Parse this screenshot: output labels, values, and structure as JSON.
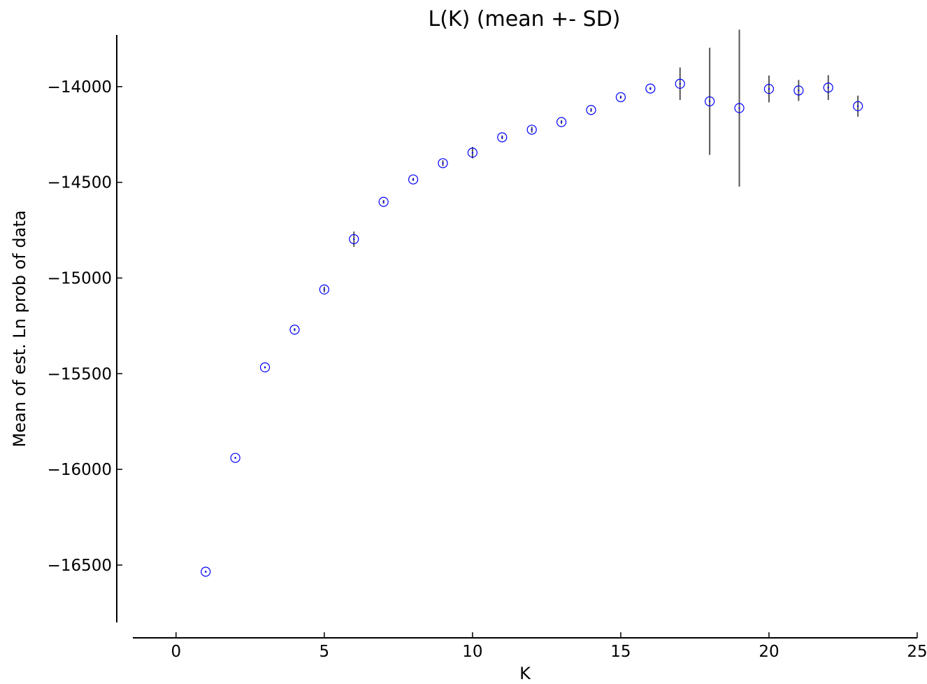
{
  "chart_data": {
    "type": "scatter",
    "title": "L(K) (mean +- SD)",
    "xlabel": "K",
    "ylabel": "Mean of est. Ln prob of data",
    "xlim": [
      -2,
      25
    ],
    "ylim": [
      -16800,
      -13730
    ],
    "xticks": [
      0,
      5,
      10,
      15,
      20,
      25
    ],
    "yticks": [
      -16500,
      -16000,
      -15500,
      -15000,
      -14500,
      -14000
    ],
    "ytick_labels": [
      "−16500",
      "−16000",
      "−15500",
      "−15000",
      "−14500",
      "−14000"
    ],
    "marker_color": "#0000ff",
    "errorbar_color": "#555555",
    "grid": false,
    "points": [
      {
        "x": 1,
        "y": -16535,
        "sd": 5
      },
      {
        "x": 2,
        "y": -15940,
        "sd": 5
      },
      {
        "x": 3,
        "y": -15467,
        "sd": 5
      },
      {
        "x": 4,
        "y": -15270,
        "sd": 8
      },
      {
        "x": 5,
        "y": -15060,
        "sd": 15
      },
      {
        "x": 6,
        "y": -14797,
        "sd": 40
      },
      {
        "x": 7,
        "y": -14602,
        "sd": 10
      },
      {
        "x": 8,
        "y": -14485,
        "sd": 8
      },
      {
        "x": 9,
        "y": -14400,
        "sd": 15
      },
      {
        "x": 10,
        "y": -14345,
        "sd": 30
      },
      {
        "x": 11,
        "y": -14265,
        "sd": 10
      },
      {
        "x": 12,
        "y": -14225,
        "sd": 15
      },
      {
        "x": 13,
        "y": -14185,
        "sd": 10
      },
      {
        "x": 14,
        "y": -14122,
        "sd": 10
      },
      {
        "x": 15,
        "y": -14055,
        "sd": 8
      },
      {
        "x": 16,
        "y": -14010,
        "sd": 8
      },
      {
        "x": 17,
        "y": -13985,
        "sd": 85
      },
      {
        "x": 18,
        "y": -14077,
        "sd": 280
      },
      {
        "x": 19,
        "y": -14112,
        "sd": 410
      },
      {
        "x": 20,
        "y": -14012,
        "sd": 70
      },
      {
        "x": 21,
        "y": -14020,
        "sd": 55
      },
      {
        "x": 22,
        "y": -14005,
        "sd": 65
      },
      {
        "x": 23,
        "y": -14102,
        "sd": 55
      }
    ]
  }
}
